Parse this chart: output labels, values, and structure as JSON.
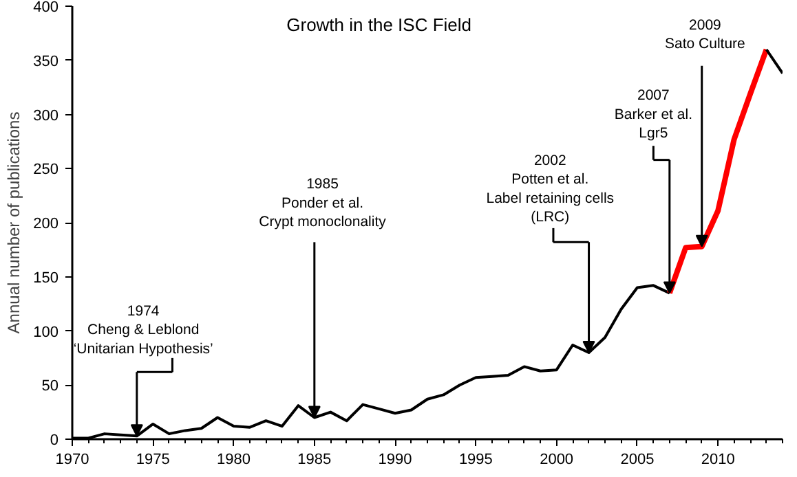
{
  "chart_data": {
    "type": "line",
    "title": "Growth in the ISC Field",
    "ylabel": "Annual number of publications",
    "xlim": [
      1970,
      2014
    ],
    "ylim": [
      0,
      400
    ],
    "xticks": [
      1970,
      1975,
      1980,
      1985,
      1990,
      1995,
      2000,
      2005,
      2010
    ],
    "yticks": [
      0,
      50,
      100,
      150,
      200,
      250,
      300,
      350,
      400
    ],
    "grid": false,
    "marker": "none",
    "line_style": "solid",
    "series": [
      {
        "color": "#000000",
        "x": [
          1970,
          1971,
          1972,
          1973,
          1974,
          1975,
          1976,
          1977,
          1978,
          1979,
          1980,
          1981,
          1982,
          1983,
          1984,
          1985,
          1986,
          1987,
          1988,
          1989,
          1990,
          1991,
          1992,
          1993,
          1994,
          1995,
          1996,
          1997,
          1998,
          1999,
          2000,
          2001,
          2002,
          2003,
          2004,
          2005,
          2006,
          2007
        ],
        "values": [
          1,
          1,
          5,
          4,
          3,
          14,
          5,
          8,
          10,
          20,
          12,
          11,
          17,
          12,
          31,
          20,
          25,
          17,
          32,
          28,
          24,
          27,
          37,
          41,
          50,
          57,
          58,
          59,
          67,
          63,
          64,
          87,
          80,
          94,
          120,
          140,
          142,
          135
        ]
      },
      {
        "color": "#ff0000",
        "x": [
          2007,
          2008,
          2009,
          2010,
          2011,
          2012,
          2013
        ],
        "values": [
          135,
          177,
          178,
          211,
          277,
          319,
          360
        ]
      },
      {
        "color": "#000000",
        "x": [
          2013,
          2014
        ],
        "values": [
          360,
          338
        ]
      }
    ],
    "annotations": [
      {
        "text": "1974\nCheng & Leblond\n‘Unitarian Hypothesis’",
        "x": 1974,
        "y": 3
      },
      {
        "text": "1985\nPonder et al.\nCrypt monoclonality",
        "x": 1985,
        "y": 20
      },
      {
        "text": "2002\nPotten et al.\nLabel retaining cells\n(LRC)",
        "x": 2002,
        "y": 80
      },
      {
        "text": "2007\nBarker et al.\nLgr5",
        "x": 2007,
        "y": 135
      },
      {
        "text": "2009\nSato Culture",
        "x": 2009,
        "y": 178
      }
    ]
  }
}
